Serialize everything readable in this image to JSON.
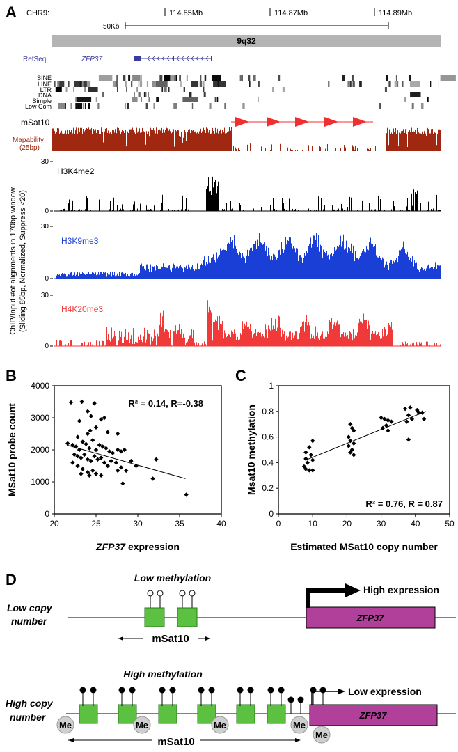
{
  "panelA": {
    "letter": "A",
    "chrom_label": "CHR9:",
    "coord_ticks": [
      "114.85Mb",
      "114.87Mb",
      "114.89Mb"
    ],
    "scale_label": "50Kb",
    "band_label": "9q32",
    "refseq_label": "RefSeq",
    "gene_label": "ZFP37",
    "repeat_labels": [
      "SINE",
      "LINE",
      "LTR",
      "DNA",
      "Simple",
      "Low Com"
    ],
    "msat_label": "mSat10",
    "mapability_label": "Mapability",
    "mapability_sub": "(25bp)",
    "y_axis_label_line1": "ChIP/Input #of alignments in 170bp window",
    "y_axis_label_line2": "(Sliding 85bp, Normalized, Suppress <20)",
    "tracks": [
      {
        "name": "H3K4me2",
        "color": "#000000",
        "ymax": "30",
        "ymin": "0"
      },
      {
        "name": "H3K9me3",
        "color": "#1a3fd6",
        "ymax": "30",
        "ymin": "0"
      },
      {
        "name": "H4K20me3",
        "color": "#f03a3a",
        "ymax": "30",
        "ymin": "0"
      }
    ],
    "colors": {
      "band": "#b4b4b4",
      "mapability": "#a02810",
      "msat": "#f03030",
      "refseq": "#3a3aa0"
    }
  },
  "panelB": {
    "letter": "B",
    "annotation": "R² = 0.14, R=-0.38",
    "xlabel_italic": "ZFP37",
    "xlabel_rest": " expression",
    "ylabel": "MSat10 probe count"
  },
  "panelC": {
    "letter": "C",
    "annotation": "R² = 0.76, R = 0.87",
    "xlabel": "Estimated MSat10 copy number",
    "ylabel": "Msat10 methylation"
  },
  "panelD": {
    "letter": "D",
    "low_copy_label_1": "Low copy",
    "low_copy_label_2": "number",
    "low_meth_label": "Low methylation",
    "high_expr_label": "High expression",
    "gene_label": "ZFP37",
    "msat_label": "mSat10",
    "high_copy_label_1": "High copy",
    "high_copy_label_2": "number",
    "high_meth_label": "High methylation",
    "low_expr_label": "Low expression",
    "me_label": "Me",
    "colors": {
      "repeat": "#5cc040",
      "gene": "#b0409a"
    }
  },
  "chart_data": [
    {
      "type": "scatter",
      "title": "",
      "xlabel": "ZFP37 expression",
      "ylabel": "MSat10 probe count",
      "xlim": [
        20,
        40
      ],
      "ylim": [
        0,
        4000
      ],
      "xticks": [
        "20",
        "25",
        "30",
        "35",
        "40"
      ],
      "yticks": [
        "0",
        "1000",
        "2000",
        "3000",
        "4000"
      ],
      "annotation": "R² = 0.14, R=-0.38",
      "trendline": [
        [
          21.5,
          2150
        ],
        [
          35.7,
          1100
        ]
      ],
      "points": [
        [
          22.0,
          3480
        ],
        [
          23.3,
          3500
        ],
        [
          24.8,
          3450
        ],
        [
          24.0,
          3200
        ],
        [
          24.4,
          3050
        ],
        [
          23.0,
          2900
        ],
        [
          25.6,
          2950
        ],
        [
          26.0,
          3000
        ],
        [
          22.8,
          2400
        ],
        [
          24.0,
          2500
        ],
        [
          24.3,
          2600
        ],
        [
          25.0,
          2700
        ],
        [
          26.4,
          2550
        ],
        [
          27.6,
          2500
        ],
        [
          21.6,
          2200
        ],
        [
          22.2,
          2150
        ],
        [
          22.6,
          2100
        ],
        [
          23.0,
          2000
        ],
        [
          23.4,
          2250
        ],
        [
          23.8,
          2180
        ],
        [
          24.2,
          2050
        ],
        [
          24.6,
          2300
        ],
        [
          25.0,
          2000
        ],
        [
          25.4,
          2150
        ],
        [
          25.8,
          2100
        ],
        [
          26.2,
          2050
        ],
        [
          26.6,
          1950
        ],
        [
          27.0,
          1900
        ],
        [
          27.6,
          2000
        ],
        [
          28.0,
          1950
        ],
        [
          22.4,
          1850
        ],
        [
          22.8,
          1800
        ],
        [
          23.2,
          1750
        ],
        [
          23.6,
          1850
        ],
        [
          24.0,
          1700
        ],
        [
          24.4,
          1650
        ],
        [
          24.8,
          1800
        ],
        [
          25.2,
          1700
        ],
        [
          25.6,
          1750
        ],
        [
          26.0,
          1600
        ],
        [
          26.4,
          1500
        ],
        [
          26.8,
          1650
        ],
        [
          27.4,
          1600
        ],
        [
          28.0,
          1450
        ],
        [
          28.6,
          1350
        ],
        [
          29.2,
          1650
        ],
        [
          29.8,
          1500
        ],
        [
          22.2,
          1600
        ],
        [
          22.8,
          1500
        ],
        [
          23.4,
          1400
        ],
        [
          24.0,
          1300
        ],
        [
          24.6,
          1350
        ],
        [
          25.0,
          1250
        ],
        [
          25.6,
          1200
        ],
        [
          23.2,
          1250
        ],
        [
          24.2,
          1200
        ],
        [
          27.6,
          1350
        ],
        [
          28.2,
          950
        ],
        [
          32.2,
          1700
        ],
        [
          31.8,
          1100
        ],
        [
          35.8,
          600
        ],
        [
          28.4,
          2000
        ]
      ]
    },
    {
      "type": "scatter",
      "title": "",
      "xlabel": "Estimated MSat10 copy number",
      "ylabel": "Msat10 methylation",
      "xlim": [
        0,
        50
      ],
      "ylim": [
        0,
        1
      ],
      "xticks": [
        "0",
        "10",
        "20",
        "30",
        "40",
        "50"
      ],
      "yticks": [
        "0",
        "0.2",
        "0.4",
        "0.6",
        "0.8",
        "1"
      ],
      "annotation": "R² = 0.76, R = 0.87",
      "trendline": [
        [
          8,
          0.42
        ],
        [
          43,
          0.8
        ]
      ],
      "points": [
        [
          10,
          0.57
        ],
        [
          9,
          0.52
        ],
        [
          8,
          0.48
        ],
        [
          9.5,
          0.46
        ],
        [
          8,
          0.43
        ],
        [
          10,
          0.42
        ],
        [
          8.5,
          0.4
        ],
        [
          7.5,
          0.37
        ],
        [
          8,
          0.35
        ],
        [
          9,
          0.34
        ],
        [
          10,
          0.34
        ],
        [
          21,
          0.7
        ],
        [
          21.5,
          0.67
        ],
        [
          22,
          0.65
        ],
        [
          20.5,
          0.6
        ],
        [
          21,
          0.57
        ],
        [
          22,
          0.55
        ],
        [
          20.5,
          0.53
        ],
        [
          21.5,
          0.5
        ],
        [
          21,
          0.48
        ],
        [
          22,
          0.46
        ],
        [
          30,
          0.75
        ],
        [
          31,
          0.74
        ],
        [
          32,
          0.73
        ],
        [
          33,
          0.72
        ],
        [
          31.5,
          0.69
        ],
        [
          30.5,
          0.67
        ],
        [
          32,
          0.65
        ],
        [
          37,
          0.82
        ],
        [
          38.5,
          0.83
        ],
        [
          40.5,
          0.81
        ],
        [
          42,
          0.79
        ],
        [
          38,
          0.77
        ],
        [
          39,
          0.74
        ],
        [
          37.5,
          0.72
        ],
        [
          42.5,
          0.74
        ],
        [
          38,
          0.58
        ],
        [
          41,
          0.79
        ]
      ]
    }
  ]
}
